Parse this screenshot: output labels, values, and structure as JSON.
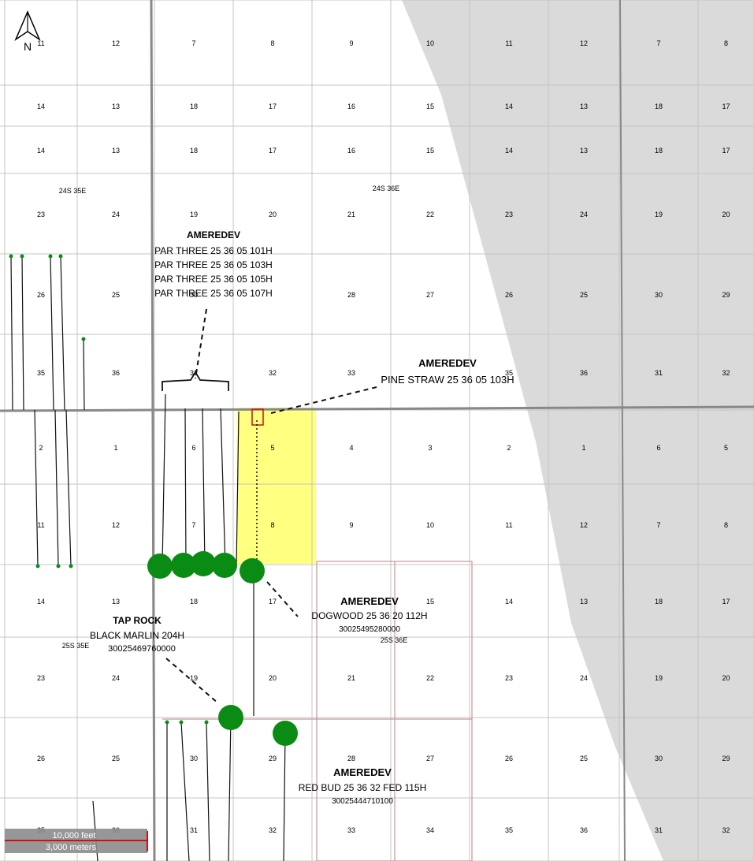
{
  "compass": {
    "label": "N"
  },
  "townships": [
    {
      "label": "24S 35E"
    },
    {
      "label": "24S 36E"
    },
    {
      "label": "25S 35E"
    },
    {
      "label": "25S 36E"
    }
  ],
  "section_rows": [
    [
      "11",
      "12",
      "7",
      "8",
      "9",
      "10",
      "11",
      "12",
      "7",
      "8"
    ],
    [
      "14",
      "13",
      "18",
      "17",
      "16",
      "15",
      "14",
      "13",
      "18",
      "17"
    ],
    [
      "14",
      "13",
      "18",
      "17",
      "16",
      "15",
      "14",
      "13",
      "18",
      "17"
    ],
    [
      "23",
      "24",
      "19",
      "20",
      "21",
      "22",
      "23",
      "24",
      "19",
      "20"
    ],
    [
      "26",
      "25",
      "30",
      "",
      "28",
      "27",
      "26",
      "25",
      "30",
      "29"
    ],
    [
      "35",
      "36",
      "31",
      "32",
      "33",
      "",
      "35",
      "36",
      "31",
      "32"
    ],
    [
      "2",
      "1",
      "6",
      "5",
      "4",
      "3",
      "2",
      "1",
      "6",
      "5"
    ],
    [
      "11",
      "12",
      "7",
      "8",
      "9",
      "10",
      "11",
      "12",
      "7",
      "8"
    ],
    [
      "14",
      "13",
      "18",
      "17",
      "",
      "15",
      "14",
      "13",
      "18",
      "17"
    ],
    [
      "23",
      "24",
      "19",
      "20",
      "21",
      "22",
      "23",
      "24",
      "19",
      "20"
    ],
    [
      "26",
      "25",
      "30",
      "29",
      "28",
      "27",
      "26",
      "25",
      "30",
      "29"
    ],
    [
      "35",
      "36",
      "31",
      "32",
      "33",
      "34",
      "35",
      "36",
      "31",
      "32"
    ]
  ],
  "labels": {
    "par_three": {
      "operator": "AMEREDEV",
      "wells": [
        "PAR THREE 25 36 05 101H",
        "PAR THREE 25 36 05 103H",
        "PAR THREE 25 36 05 105H",
        "PAR THREE 25 36 05 107H"
      ]
    },
    "pine_straw": {
      "operator": "AMEREDEV",
      "well": "PINE STRAW 25 36 05 103H"
    },
    "dogwood": {
      "operator": "AMEREDEV",
      "well": "DOGWOOD 25 36 20 112H",
      "api": "30025495280000"
    },
    "tap_rock": {
      "operator": "TAP ROCK",
      "well": "BLACK MARLIN 204H",
      "api": "30025469760000"
    },
    "red_bud": {
      "operator": "AMEREDEV",
      "well": "RED BUD 25 36 32 FED 115H",
      "api": "30025444710100"
    }
  },
  "scale_bar": {
    "feet": "10,000 feet",
    "meters": "3,000 meters"
  },
  "colors": {
    "shaded_area": "#dadada",
    "highlight_area": "#ffff80",
    "well_marker": "#0a8c14",
    "grid_line": "#c4c4c4",
    "section_line": "#c89696",
    "township_line": "#888888"
  }
}
